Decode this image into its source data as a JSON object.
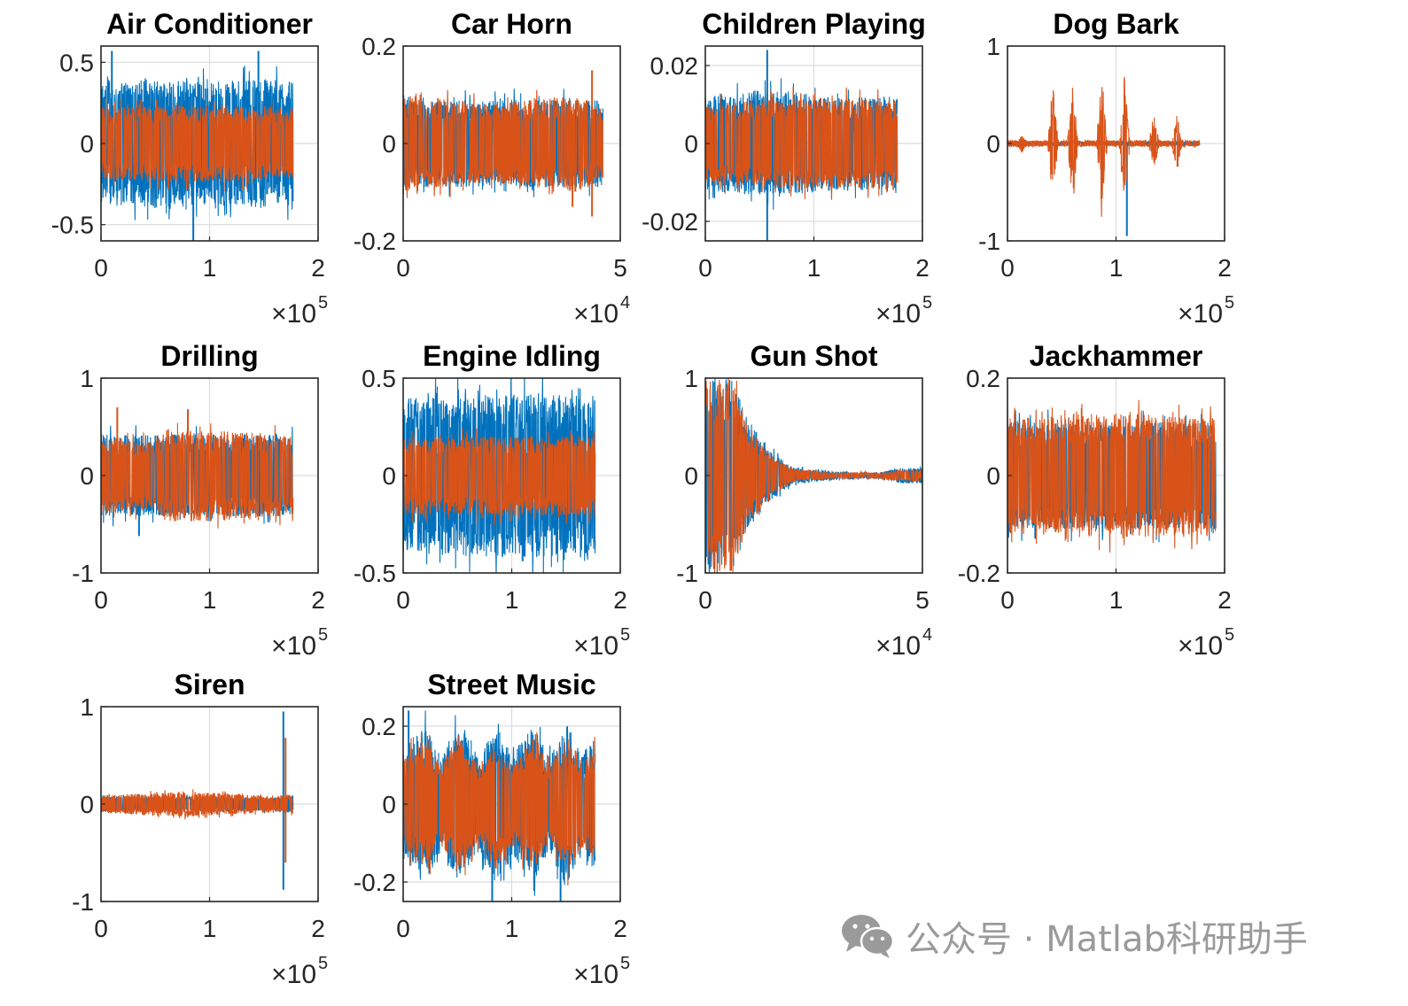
{
  "colors": {
    "series1": "#0072BD",
    "series2": "#D95319",
    "grid": "#dcdcdc",
    "axis": "#262626"
  },
  "watermark": {
    "text": "公众号 · Matlab科研助手",
    "icon": "wechat-icon"
  },
  "chart_data": [
    {
      "type": "line",
      "title": "Air Conditioner",
      "xlim": [
        0,
        2
      ],
      "ylim": [
        -0.6,
        0.6
      ],
      "xticks": [
        "0",
        "1",
        "2"
      ],
      "yticks": [
        {
          "v": 0.5,
          "t": "0.5"
        },
        {
          "v": 0,
          "t": "0"
        },
        {
          "v": -0.5,
          "t": "-0.5"
        }
      ],
      "x_exponent": "5",
      "signal_length": 1.77,
      "grid": true,
      "series": [
        {
          "color": "#0072BD",
          "envelope": [
            {
              "x": 0,
              "a": 0.38
            },
            {
              "x": 0.5,
              "a": 0.4
            },
            {
              "x": 1,
              "a": 0.38
            },
            {
              "x": 1.5,
              "a": 0.4
            },
            {
              "x": 1.77,
              "a": 0.38
            }
          ],
          "peaks": [
            {
              "x": 0.1,
              "a": 0.57
            },
            {
              "x": 0.85,
              "a": -0.6
            },
            {
              "x": 1.45,
              "a": 0.57
            }
          ]
        },
        {
          "color": "#D95319",
          "envelope": [
            {
              "x": 0,
              "a": 0.22
            },
            {
              "x": 1,
              "a": 0.24
            },
            {
              "x": 1.77,
              "a": 0.22
            }
          ],
          "peaks": []
        }
      ]
    },
    {
      "type": "line",
      "title": "Car Horn",
      "xlim": [
        0,
        5
      ],
      "ylim": [
        -0.2,
        0.2
      ],
      "xticks": [
        "0",
        "5"
      ],
      "yticks": [
        {
          "v": 0.2,
          "t": "0.2"
        },
        {
          "v": 0,
          "t": "0"
        },
        {
          "v": -0.2,
          "t": "-0.2"
        }
      ],
      "x_exponent": "4",
      "signal_length": 4.6,
      "grid": true,
      "series": [
        {
          "color": "#0072BD",
          "envelope": [
            {
              "x": 0,
              "a": 0.09
            },
            {
              "x": 4.6,
              "a": 0.09
            }
          ],
          "peaks": []
        },
        {
          "color": "#D95319",
          "envelope": [
            {
              "x": 0,
              "a": 0.1
            },
            {
              "x": 2,
              "a": 0.08
            },
            {
              "x": 4,
              "a": 0.1
            },
            {
              "x": 4.6,
              "a": 0.07
            }
          ],
          "peaks": [
            {
              "x": 4.35,
              "a": 0.15
            },
            {
              "x": 4.35,
              "a": -0.15
            },
            {
              "x": 3.9,
              "a": -0.13
            }
          ]
        }
      ]
    },
    {
      "type": "line",
      "title": "Children Playing",
      "xlim": [
        0,
        2
      ],
      "ylim": [
        -0.025,
        0.025
      ],
      "xticks": [
        "0",
        "1",
        "2"
      ],
      "yticks": [
        {
          "v": 0.02,
          "t": "0.02"
        },
        {
          "v": 0,
          "t": "0"
        },
        {
          "v": -0.02,
          "t": "-0.02"
        }
      ],
      "x_exponent": "5",
      "signal_length": 1.77,
      "grid": true,
      "series": [
        {
          "color": "#0072BD",
          "envelope": [
            {
              "x": 0,
              "a": 0.012
            },
            {
              "x": 0.6,
              "a": 0.014
            },
            {
              "x": 1.2,
              "a": 0.012
            },
            {
              "x": 1.77,
              "a": 0.012
            }
          ],
          "peaks": [
            {
              "x": 0.57,
              "a": 0.024
            },
            {
              "x": 0.57,
              "a": -0.025
            }
          ]
        },
        {
          "color": "#D95319",
          "envelope": [
            {
              "x": 0,
              "a": 0.01
            },
            {
              "x": 0.9,
              "a": 0.012
            },
            {
              "x": 1.77,
              "a": 0.011
            }
          ],
          "peaks": []
        }
      ]
    },
    {
      "type": "line",
      "title": "Dog Bark",
      "xlim": [
        0,
        2
      ],
      "ylim": [
        -1,
        1
      ],
      "xticks": [
        "0",
        "1",
        "2"
      ],
      "yticks": [
        {
          "v": 1,
          "t": "1"
        },
        {
          "v": 0,
          "t": "0"
        },
        {
          "v": -1,
          "t": "-1"
        }
      ],
      "x_exponent": "5",
      "signal_length": 1.77,
      "grid": true,
      "series": [
        {
          "color": "#0072BD",
          "envelope": [
            {
              "x": 0,
              "a": 0.02
            },
            {
              "x": 1.77,
              "a": 0.02
            }
          ],
          "peaks": [
            {
              "x": 1.1,
              "a": -0.95
            }
          ]
        },
        {
          "color": "#D95319",
          "envelope": [
            {
              "x": 0,
              "a": 0.03
            },
            {
              "x": 1.77,
              "a": 0.03
            }
          ],
          "bursts": [
            {
              "x": 0.13,
              "a": 0.12
            },
            {
              "x": 0.42,
              "a": 0.72
            },
            {
              "x": 0.6,
              "a": 0.75
            },
            {
              "x": 0.87,
              "a": 0.78
            },
            {
              "x": 1.08,
              "a": 0.8
            },
            {
              "x": 1.35,
              "a": 0.35
            },
            {
              "x": 1.56,
              "a": 0.35
            },
            {
              "x": 1.72,
              "a": 0.05
            }
          ]
        }
      ]
    },
    {
      "type": "line",
      "title": "Drilling",
      "xlim": [
        0,
        2
      ],
      "ylim": [
        -1,
        1
      ],
      "xticks": [
        "0",
        "1",
        "2"
      ],
      "yticks": [
        {
          "v": 1,
          "t": "1"
        },
        {
          "v": 0,
          "t": "0"
        },
        {
          "v": -1,
          "t": "-1"
        }
      ],
      "x_exponent": "5",
      "signal_length": 1.77,
      "grid": true,
      "series": [
        {
          "color": "#0072BD",
          "envelope": [
            {
              "x": 0,
              "a": 0.42
            },
            {
              "x": 1.77,
              "a": 0.42
            }
          ],
          "peaks": [
            {
              "x": 0.35,
              "a": -0.62
            }
          ]
        },
        {
          "color": "#D95319",
          "envelope": [
            {
              "x": 0,
              "a": 0.4
            },
            {
              "x": 0.5,
              "a": 0.35
            },
            {
              "x": 0.6,
              "a": 0.48
            },
            {
              "x": 1.2,
              "a": 0.46
            },
            {
              "x": 1.77,
              "a": 0.4
            }
          ],
          "peaks": [
            {
              "x": 0.15,
              "a": 0.7
            },
            {
              "x": 0.8,
              "a": 0.68
            }
          ]
        }
      ]
    },
    {
      "type": "line",
      "title": "Engine Idling",
      "xlim": [
        0,
        2
      ],
      "ylim": [
        -0.5,
        0.5
      ],
      "xticks": [
        "0",
        "1",
        "2"
      ],
      "yticks": [
        {
          "v": 0.5,
          "t": "0.5"
        },
        {
          "v": 0,
          "t": "0"
        },
        {
          "v": -0.5,
          "t": "-0.5"
        }
      ],
      "x_exponent": "5",
      "signal_length": 1.77,
      "grid": true,
      "series": [
        {
          "color": "#0072BD",
          "envelope": [
            {
              "x": 0,
              "a": 0.4
            },
            {
              "x": 0.9,
              "a": 0.42
            },
            {
              "x": 1.77,
              "a": 0.41
            }
          ],
          "peaks": [
            {
              "x": 1.1,
              "a": -0.44
            }
          ]
        },
        {
          "color": "#D95319",
          "envelope": [
            {
              "x": 0,
              "a": 0.2
            },
            {
              "x": 1.77,
              "a": 0.21
            }
          ],
          "peaks": []
        }
      ]
    },
    {
      "type": "line",
      "title": "Gun Shot",
      "xlim": [
        0,
        5
      ],
      "ylim": [
        -1,
        1
      ],
      "xticks": [
        "0",
        "5"
      ],
      "yticks": [
        {
          "v": 1,
          "t": "1"
        },
        {
          "v": 0,
          "t": "0"
        },
        {
          "v": -1,
          "t": "-1"
        }
      ],
      "x_exponent": "4",
      "signal_length": 5,
      "grid": true,
      "series": [
        {
          "color": "#0072BD",
          "envelope": [
            {
              "x": 0,
              "a": 1
            },
            {
              "x": 0.6,
              "a": 1
            },
            {
              "x": 1,
              "a": 0.55
            },
            {
              "x": 1.5,
              "a": 0.25
            },
            {
              "x": 2,
              "a": 0.09
            },
            {
              "x": 3,
              "a": 0.04
            },
            {
              "x": 4,
              "a": 0.03
            },
            {
              "x": 4.5,
              "a": 0.08
            },
            {
              "x": 5,
              "a": 0.08
            }
          ],
          "peaks": []
        },
        {
          "color": "#D95319",
          "envelope": [
            {
              "x": 0,
              "a": 1
            },
            {
              "x": 0.6,
              "a": 1
            },
            {
              "x": 1,
              "a": 0.5
            },
            {
              "x": 1.5,
              "a": 0.22
            },
            {
              "x": 2,
              "a": 0.07
            },
            {
              "x": 3,
              "a": 0.03
            },
            {
              "x": 4,
              "a": 0.03
            },
            {
              "x": 4.5,
              "a": 0.06
            },
            {
              "x": 5,
              "a": 0.05
            }
          ],
          "peaks": []
        }
      ]
    },
    {
      "type": "line",
      "title": "Jackhammer",
      "xlim": [
        0,
        2
      ],
      "ylim": [
        -0.2,
        0.2
      ],
      "xticks": [
        "0",
        "1",
        "2"
      ],
      "yticks": [
        {
          "v": 0.2,
          "t": "0.2"
        },
        {
          "v": 0,
          "t": "0"
        },
        {
          "v": -0.2,
          "t": "-0.2"
        }
      ],
      "x_exponent": "5",
      "signal_length": 1.92,
      "grid": true,
      "series": [
        {
          "color": "#0072BD",
          "envelope": [
            {
              "x": 0,
              "a": 0.11
            },
            {
              "x": 1.92,
              "a": 0.11
            }
          ],
          "peaks": []
        },
        {
          "color": "#D95319",
          "envelope": [
            {
              "x": 0,
              "a": 0.12
            },
            {
              "x": 1,
              "a": 0.13
            },
            {
              "x": 1.92,
              "a": 0.12
            }
          ],
          "peaks": []
        }
      ]
    },
    {
      "type": "line",
      "title": "Siren",
      "xlim": [
        0,
        2
      ],
      "ylim": [
        -1,
        1
      ],
      "xticks": [
        "0",
        "1",
        "2"
      ],
      "yticks": [
        {
          "v": 1,
          "t": "1"
        },
        {
          "v": 0,
          "t": "0"
        },
        {
          "v": -1,
          "t": "-1"
        }
      ],
      "x_exponent": "5",
      "signal_length": 1.77,
      "grid": true,
      "series": [
        {
          "color": "#0072BD",
          "envelope": [
            {
              "x": 0,
              "a": 0.08
            },
            {
              "x": 1.6,
              "a": 0.07
            },
            {
              "x": 1.77,
              "a": 0.1
            }
          ],
          "peaks": [
            {
              "x": 1.68,
              "a": 0.95
            },
            {
              "x": 1.68,
              "a": -0.88
            }
          ]
        },
        {
          "color": "#D95319",
          "envelope": [
            {
              "x": 0,
              "a": 0.09
            },
            {
              "x": 0.8,
              "a": 0.13
            },
            {
              "x": 1.6,
              "a": 0.08
            },
            {
              "x": 1.77,
              "a": 0.1
            }
          ],
          "peaks": [
            {
              "x": 1.7,
              "a": 0.68
            },
            {
              "x": 1.7,
              "a": -0.6
            }
          ]
        }
      ]
    },
    {
      "type": "line",
      "title": "Street Music",
      "xlim": [
        0,
        2
      ],
      "ylim": [
        -0.25,
        0.25
      ],
      "xticks": [
        "0",
        "1",
        "2"
      ],
      "yticks": [
        {
          "v": 0.2,
          "t": "0.2"
        },
        {
          "v": 0,
          "t": "0"
        },
        {
          "v": -0.2,
          "t": "-0.2"
        }
      ],
      "x_exponent": "5",
      "signal_length": 1.77,
      "grid": true,
      "series": [
        {
          "color": "#0072BD",
          "envelope": [
            {
              "x": 0,
              "a": 0.14
            },
            {
              "x": 0.2,
              "a": 0.2
            },
            {
              "x": 0.35,
              "a": 0.12
            },
            {
              "x": 0.5,
              "a": 0.21
            },
            {
              "x": 0.7,
              "a": 0.12
            },
            {
              "x": 0.85,
              "a": 0.2
            },
            {
              "x": 1.0,
              "a": 0.13
            },
            {
              "x": 1.2,
              "a": 0.2
            },
            {
              "x": 1.35,
              "a": 0.12
            },
            {
              "x": 1.5,
              "a": 0.21
            },
            {
              "x": 1.65,
              "a": 0.13
            },
            {
              "x": 1.77,
              "a": 0.17
            }
          ],
          "peaks": [
            {
              "x": 0.82,
              "a": -0.25
            },
            {
              "x": 1.45,
              "a": -0.25
            },
            {
              "x": 0.05,
              "a": 0.24
            }
          ]
        },
        {
          "color": "#D95319",
          "envelope": [
            {
              "x": 0,
              "a": 0.12
            },
            {
              "x": 0.2,
              "a": 0.17
            },
            {
              "x": 0.35,
              "a": 0.1
            },
            {
              "x": 0.5,
              "a": 0.18
            },
            {
              "x": 0.7,
              "a": 0.1
            },
            {
              "x": 0.85,
              "a": 0.17
            },
            {
              "x": 1.0,
              "a": 0.11
            },
            {
              "x": 1.2,
              "a": 0.17
            },
            {
              "x": 1.35,
              "a": 0.1
            },
            {
              "x": 1.5,
              "a": 0.18
            },
            {
              "x": 1.65,
              "a": 0.11
            },
            {
              "x": 1.77,
              "a": 0.15
            }
          ],
          "peaks": []
        }
      ]
    }
  ]
}
